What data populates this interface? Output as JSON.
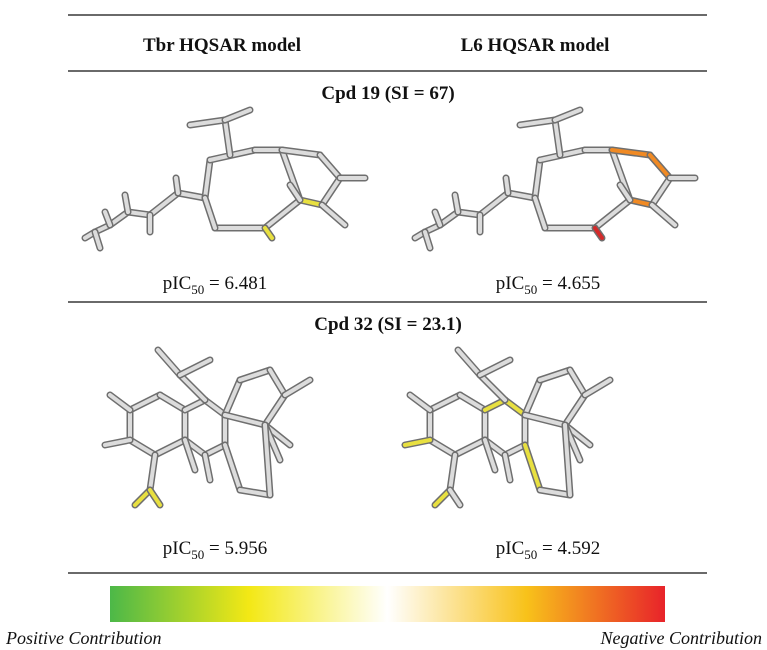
{
  "header": {
    "columns": [
      "Tbr HQSAR model",
      "L6 HQSAR model"
    ]
  },
  "rows": [
    {
      "title": "Cpd 19 (SI = 67)",
      "cells": [
        {
          "text": "pIC",
          "subscript": "50",
          "suffix": " = 6.481"
        },
        {
          "text": "pIC",
          "subscript": "50",
          "suffix": " = 4.655"
        }
      ]
    },
    {
      "title": "Cpd 32 (SI = 23.1)",
      "cells": [
        {
          "text": "pIC",
          "subscript": "50",
          "suffix": " = 5.956"
        },
        {
          "text": "pIC",
          "subscript": "50",
          "suffix": " = 4.592"
        }
      ]
    }
  ],
  "legend": {
    "left": "Positive Contribution",
    "right": "Negative Contribution"
  }
}
